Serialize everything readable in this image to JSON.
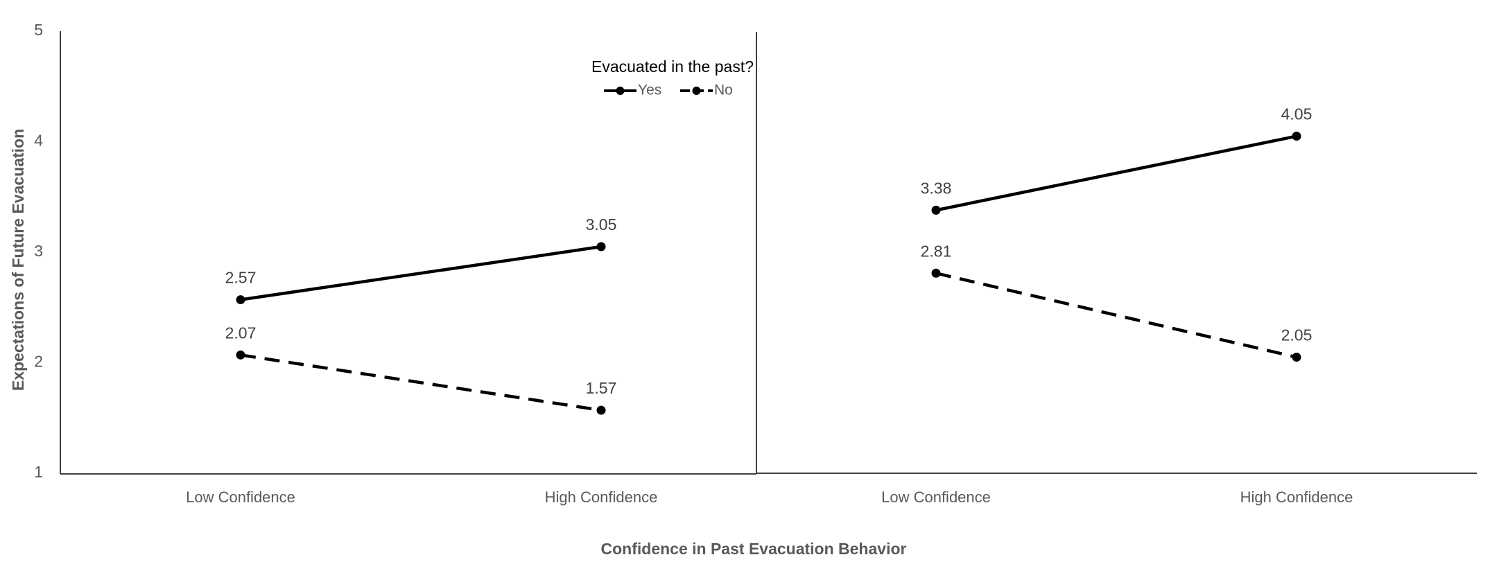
{
  "chart_data": {
    "type": "line",
    "ylabel": "Expectations of Future Evacuation",
    "xlabel": "Confidence in Past Evacuation Behavior",
    "ylim": [
      1,
      5
    ],
    "yticks": [
      "1",
      "2",
      "3",
      "4",
      "5"
    ],
    "grid": false,
    "legend": {
      "title": "Evacuated in the past?",
      "placement": "top-right of left panel",
      "entries": [
        "Yes",
        "No"
      ]
    },
    "panels": [
      {
        "categories": [
          "Low Confidence",
          "High Confidence"
        ],
        "series": [
          {
            "name": "Yes",
            "style": "solid",
            "values": [
              2.57,
              3.05
            ],
            "labels": [
              "2.57",
              "3.05"
            ]
          },
          {
            "name": "No",
            "style": "dashed",
            "values": [
              2.07,
              1.57
            ],
            "labels": [
              "2.07",
              "1.57"
            ]
          }
        ]
      },
      {
        "categories": [
          "Low Confidence",
          "High Confidence"
        ],
        "series": [
          {
            "name": "Yes",
            "style": "solid",
            "values": [
              3.38,
              4.05
            ],
            "labels": [
              "3.38",
              "4.05"
            ]
          },
          {
            "name": "No",
            "style": "dashed",
            "values": [
              2.81,
              2.05
            ],
            "labels": [
              "2.81",
              "2.05"
            ]
          }
        ]
      }
    ],
    "colors": {
      "line": "#000000",
      "axis": "#404040",
      "tick_text": "#595959",
      "data_label_text": "#404040"
    }
  }
}
